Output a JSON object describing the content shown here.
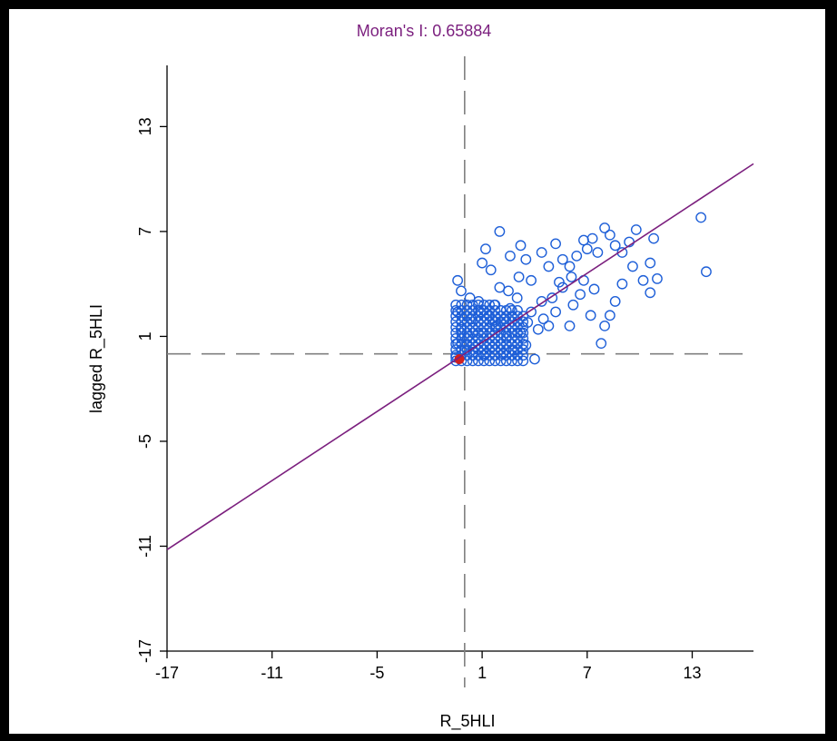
{
  "chart_data": {
    "type": "scatter",
    "title": "Moran's I: 0.65884",
    "xlabel": "R_5HLI",
    "ylabel": "lagged R_5HLI",
    "xlim": [
      -17,
      16.5
    ],
    "ylim": [
      -17,
      16.5
    ],
    "xticks": [
      "-17",
      "-11",
      "-5",
      "1",
      "7",
      "13"
    ],
    "yticks": [
      "-17",
      "-11",
      "-5",
      "1",
      "7",
      "13"
    ],
    "grid": false,
    "legend": "none",
    "colors": {
      "points": "#1e5fd8",
      "regression": "#7b1f7e",
      "title": "#7b1f7e",
      "reference_lines": "#808080",
      "selected": "#d02020"
    },
    "reference_lines": {
      "x": 0,
      "y": 0
    },
    "regression": {
      "slope": 0.65884,
      "intercept": 0
    },
    "selected_point": {
      "x": -0.3,
      "y": -0.3
    },
    "series": [
      {
        "points": [
          [
            1.2,
            6.0
          ],
          [
            1.0,
            5.2
          ],
          [
            1.5,
            4.8
          ],
          [
            2.0,
            7.0
          ],
          [
            2.6,
            5.6
          ],
          [
            3.2,
            6.2
          ],
          [
            3.5,
            5.4
          ],
          [
            3.8,
            4.2
          ],
          [
            4.4,
            5.8
          ],
          [
            4.8,
            5.0
          ],
          [
            5.2,
            6.3
          ],
          [
            5.6,
            5.4
          ],
          [
            6.0,
            5.0
          ],
          [
            6.4,
            5.6
          ],
          [
            6.8,
            6.5
          ],
          [
            7.0,
            6.0
          ],
          [
            7.3,
            6.6
          ],
          [
            7.6,
            5.8
          ],
          [
            8.0,
            7.2
          ],
          [
            8.3,
            6.8
          ],
          [
            8.6,
            6.2
          ],
          [
            9.0,
            5.8
          ],
          [
            9.4,
            6.4
          ],
          [
            9.8,
            7.1
          ],
          [
            10.8,
            6.6
          ],
          [
            13.5,
            7.8
          ],
          [
            13.8,
            4.7
          ],
          [
            9.6,
            5.0
          ],
          [
            10.2,
            4.2
          ],
          [
            10.6,
            5.2
          ],
          [
            11.0,
            4.3
          ],
          [
            10.6,
            3.5
          ],
          [
            9.0,
            4.0
          ],
          [
            8.6,
            3.0
          ],
          [
            8.3,
            2.2
          ],
          [
            8.0,
            1.6
          ],
          [
            7.8,
            0.6
          ],
          [
            7.2,
            2.2
          ],
          [
            6.6,
            3.4
          ],
          [
            6.2,
            2.8
          ],
          [
            6.0,
            1.6
          ],
          [
            5.6,
            3.8
          ],
          [
            5.2,
            2.4
          ],
          [
            4.8,
            1.6
          ],
          [
            4.4,
            3.0
          ],
          [
            4.2,
            1.4
          ],
          [
            4.0,
            -0.3
          ],
          [
            3.8,
            2.4
          ],
          [
            3.5,
            0.5
          ],
          [
            3.2,
            1.2
          ],
          [
            3.0,
            3.2
          ],
          [
            2.8,
            0.2
          ],
          [
            2.6,
            2.6
          ],
          [
            2.4,
            1.0
          ],
          [
            2.2,
            0.0
          ],
          [
            2.0,
            3.8
          ],
          [
            1.8,
            1.6
          ],
          [
            1.6,
            0.4
          ],
          [
            1.4,
            2.2
          ],
          [
            1.2,
            0.0
          ],
          [
            1.0,
            1.2
          ],
          [
            0.8,
            3.0
          ],
          [
            0.6,
            0.4
          ],
          [
            0.4,
            2.0
          ],
          [
            0.2,
            1.0
          ],
          [
            0.0,
            0.2
          ],
          [
            -0.2,
            1.4
          ],
          [
            -0.4,
            0.6
          ],
          [
            -0.5,
            -0.2
          ],
          [
            -0.2,
            3.6
          ],
          [
            -0.4,
            4.2
          ],
          [
            0.3,
            3.2
          ],
          [
            -0.4,
            2.4
          ],
          [
            0.5,
            0.1
          ],
          [
            1.1,
            -0.1
          ],
          [
            1.6,
            1.9
          ],
          [
            2.3,
            2.0
          ],
          [
            3.6,
            1.8
          ],
          [
            4.5,
            2.0
          ],
          [
            5.0,
            3.2
          ],
          [
            5.4,
            4.1
          ],
          [
            6.1,
            4.4
          ],
          [
            6.8,
            4.2
          ],
          [
            7.4,
            3.7
          ],
          [
            3.1,
            4.4
          ],
          [
            2.5,
            3.6
          ],
          [
            1.7,
            2.8
          ],
          [
            0.9,
            2.4
          ]
        ]
      }
    ]
  }
}
